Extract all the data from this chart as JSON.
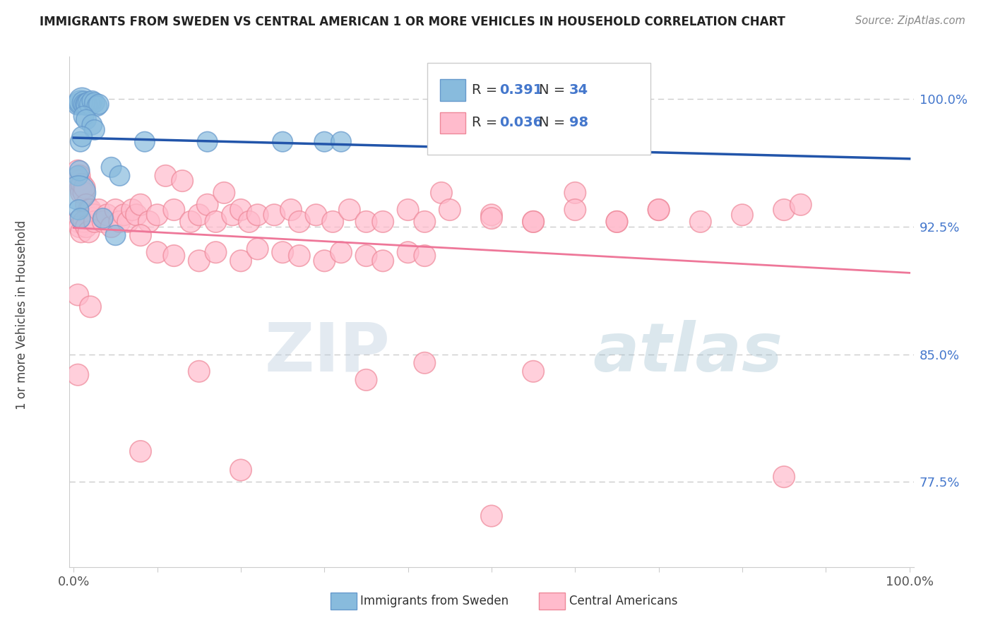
{
  "title": "IMMIGRANTS FROM SWEDEN VS CENTRAL AMERICAN 1 OR MORE VEHICLES IN HOUSEHOLD CORRELATION CHART",
  "source": "Source: ZipAtlas.com",
  "ylabel": "1 or more Vehicles in Household",
  "yticks": [
    0.775,
    0.85,
    0.925,
    1.0
  ],
  "ytick_labels": [
    "77.5%",
    "85.0%",
    "92.5%",
    "100.0%"
  ],
  "xlim": [
    -0.005,
    1.005
  ],
  "ylim": [
    0.725,
    1.025
  ],
  "watermark_zip": "ZIP",
  "watermark_atlas": "atlas",
  "legend_r1_val": "0.391",
  "legend_n1_val": "34",
  "legend_r2_val": "0.036",
  "legend_n2_val": "98",
  "sweden_color": "#88bbdd",
  "sweden_edge": "#6699cc",
  "central_color": "#ffbbcc",
  "central_edge": "#ee8899",
  "sweden_trend_color": "#2255aa",
  "central_trend_color": "#ee7799",
  "sweden_x": [
    0.005,
    0.008,
    0.01,
    0.012,
    0.013,
    0.015,
    0.016,
    0.018,
    0.02,
    0.022,
    0.025,
    0.028,
    0.03,
    0.012,
    0.015,
    0.022,
    0.025,
    0.008,
    0.01,
    0.085,
    0.16,
    0.005,
    0.007,
    0.006,
    0.045,
    0.055,
    0.006,
    0.008,
    0.05,
    0.035,
    0.25,
    0.3,
    0.45,
    0.32
  ],
  "sweden_y": [
    0.997,
    0.998,
    0.999,
    0.998,
    0.997,
    0.997,
    0.997,
    0.998,
    0.997,
    0.999,
    0.998,
    0.996,
    0.997,
    0.99,
    0.988,
    0.985,
    0.982,
    0.975,
    0.978,
    0.975,
    0.975,
    0.955,
    0.958,
    0.945,
    0.96,
    0.955,
    0.935,
    0.93,
    0.92,
    0.93,
    0.975,
    0.975,
    0.975,
    0.975
  ],
  "sweden_s": [
    80,
    100,
    120,
    90,
    80,
    80,
    80,
    80,
    80,
    70,
    70,
    70,
    70,
    70,
    70,
    70,
    70,
    70,
    70,
    70,
    70,
    70,
    70,
    200,
    70,
    70,
    70,
    70,
    70,
    70,
    70,
    70,
    70,
    70
  ],
  "central_x": [
    0.005,
    0.006,
    0.007,
    0.008,
    0.009,
    0.01,
    0.012,
    0.013,
    0.015,
    0.017,
    0.018,
    0.02,
    0.022,
    0.025,
    0.005,
    0.007,
    0.009,
    0.012,
    0.015,
    0.018,
    0.025,
    0.03,
    0.035,
    0.04,
    0.045,
    0.05,
    0.055,
    0.06,
    0.065,
    0.07,
    0.075,
    0.08,
    0.09,
    0.1,
    0.11,
    0.12,
    0.13,
    0.14,
    0.15,
    0.16,
    0.17,
    0.18,
    0.19,
    0.2,
    0.21,
    0.22,
    0.24,
    0.26,
    0.27,
    0.29,
    0.31,
    0.33,
    0.35,
    0.37,
    0.4,
    0.42,
    0.44,
    0.5,
    0.55,
    0.6,
    0.65,
    0.7,
    0.08,
    0.1,
    0.12,
    0.15,
    0.17,
    0.2,
    0.22,
    0.25,
    0.27,
    0.3,
    0.32,
    0.35,
    0.37,
    0.4,
    0.42,
    0.45,
    0.5,
    0.55,
    0.6,
    0.65,
    0.7,
    0.75,
    0.8,
    0.85,
    0.87,
    0.005,
    0.02,
    0.005,
    0.15,
    0.35,
    0.42,
    0.55,
    0.5,
    0.08,
    0.2,
    0.85
  ],
  "central_y": [
    0.958,
    0.952,
    0.955,
    0.948,
    0.945,
    0.95,
    0.945,
    0.948,
    0.938,
    0.932,
    0.935,
    0.935,
    0.93,
    0.932,
    0.928,
    0.925,
    0.922,
    0.928,
    0.925,
    0.922,
    0.928,
    0.935,
    0.928,
    0.932,
    0.925,
    0.935,
    0.928,
    0.932,
    0.928,
    0.935,
    0.932,
    0.938,
    0.928,
    0.932,
    0.955,
    0.935,
    0.952,
    0.928,
    0.932,
    0.938,
    0.928,
    0.945,
    0.932,
    0.935,
    0.928,
    0.932,
    0.932,
    0.935,
    0.928,
    0.932,
    0.928,
    0.935,
    0.928,
    0.928,
    0.935,
    0.928,
    0.945,
    0.932,
    0.928,
    0.945,
    0.928,
    0.935,
    0.92,
    0.91,
    0.908,
    0.905,
    0.91,
    0.905,
    0.912,
    0.91,
    0.908,
    0.905,
    0.91,
    0.908,
    0.905,
    0.91,
    0.908,
    0.935,
    0.93,
    0.928,
    0.935,
    0.928,
    0.935,
    0.928,
    0.932,
    0.935,
    0.938,
    0.885,
    0.878,
    0.838,
    0.84,
    0.835,
    0.845,
    0.84,
    0.755,
    0.793,
    0.782,
    0.778
  ],
  "central_s": [
    80,
    80,
    80,
    80,
    80,
    80,
    80,
    80,
    80,
    80,
    80,
    80,
    80,
    80,
    80,
    80,
    80,
    80,
    80,
    80,
    80,
    80,
    80,
    80,
    80,
    80,
    80,
    80,
    80,
    80,
    80,
    80,
    80,
    80,
    80,
    80,
    80,
    80,
    80,
    80,
    80,
    80,
    80,
    80,
    80,
    80,
    80,
    80,
    80,
    80,
    80,
    80,
    80,
    80,
    80,
    80,
    80,
    80,
    80,
    80,
    80,
    80,
    80,
    80,
    80,
    80,
    80,
    80,
    80,
    80,
    80,
    80,
    80,
    80,
    80,
    80,
    80,
    80,
    80,
    80,
    80,
    80,
    80,
    80,
    80,
    80,
    80,
    80,
    80,
    80,
    80,
    80,
    80,
    80,
    80,
    80,
    80,
    80
  ]
}
